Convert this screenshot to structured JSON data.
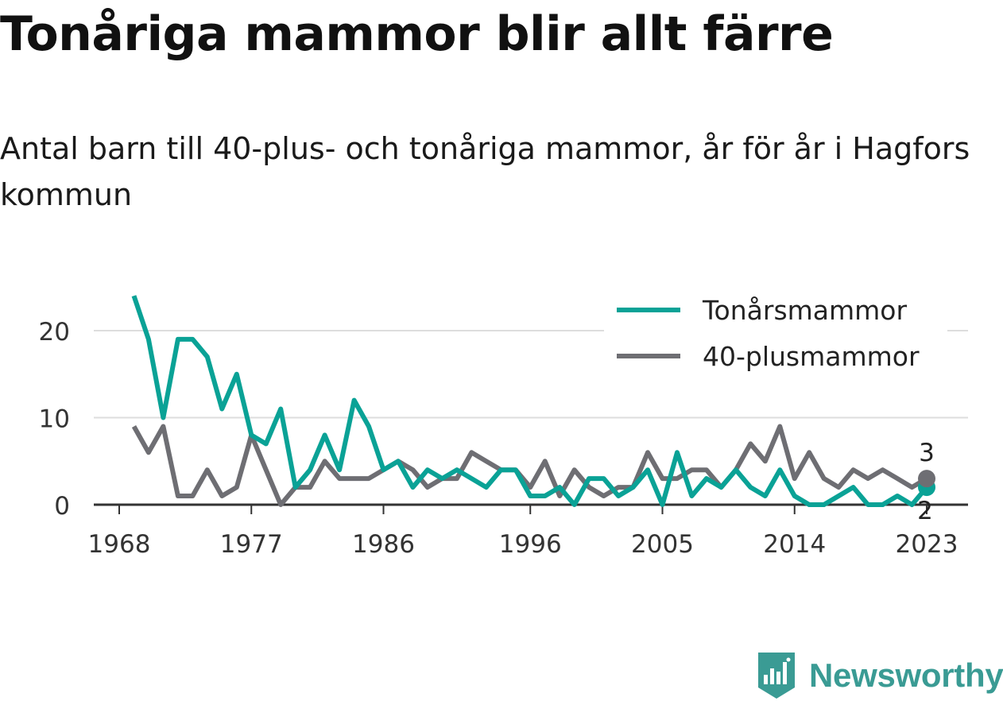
{
  "title": "Tonåriga mammor blir allt färre",
  "subtitle": "Antal barn till 40-plus- och tonåriga mammor, år för år i Hagfors kommun",
  "brand": {
    "name": "Newsworthy",
    "icon": "newsworthy-logo-icon"
  },
  "colors": {
    "teen": "#0aa296",
    "forty_plus": "#6e6e73",
    "grid": "#dddddd",
    "axis": "#333333"
  },
  "chart_data": {
    "type": "line",
    "x": [
      1969,
      1970,
      1971,
      1972,
      1973,
      1974,
      1975,
      1976,
      1977,
      1978,
      1979,
      1980,
      1981,
      1982,
      1983,
      1984,
      1985,
      1986,
      1987,
      1988,
      1989,
      1990,
      1991,
      1992,
      1993,
      1994,
      1995,
      1996,
      1997,
      1998,
      1999,
      2000,
      2001,
      2002,
      2003,
      2004,
      2005,
      2006,
      2007,
      2008,
      2009,
      2010,
      2011,
      2012,
      2013,
      2014,
      2015,
      2016,
      2017,
      2018,
      2019,
      2020,
      2021,
      2022,
      2023
    ],
    "series": [
      {
        "name": "Tonårsmammor",
        "color": "#0aa296",
        "values": [
          24,
          19,
          10,
          19,
          19,
          17,
          11,
          15,
          8,
          7,
          11,
          2,
          4,
          8,
          4,
          12,
          9,
          4,
          5,
          2,
          4,
          3,
          4,
          3,
          2,
          4,
          4,
          1,
          1,
          2,
          0,
          3,
          3,
          1,
          2,
          4,
          0,
          6,
          1,
          3,
          2,
          4,
          2,
          1,
          4,
          1,
          0,
          0,
          1,
          2,
          0,
          0,
          1,
          0,
          2
        ],
        "end_label": "2"
      },
      {
        "name": "40-plusmammor",
        "color": "#6e6e73",
        "values": [
          9,
          6,
          9,
          1,
          1,
          4,
          1,
          2,
          8,
          4,
          0,
          2,
          2,
          5,
          3,
          3,
          3,
          4,
          5,
          4,
          2,
          3,
          3,
          6,
          5,
          4,
          4,
          2,
          5,
          1,
          4,
          2,
          1,
          2,
          2,
          6,
          3,
          3,
          4,
          4,
          2,
          4,
          7,
          5,
          9,
          3,
          6,
          3,
          2,
          4,
          3,
          4,
          3,
          2,
          3
        ],
        "end_label": "3"
      }
    ],
    "x_ticks": [
      1968,
      1977,
      1986,
      1996,
      2005,
      2014,
      2023
    ],
    "x_tick_labels": [
      "1968",
      "1977",
      "1986",
      "1996",
      "2005",
      "2014",
      "2023"
    ],
    "y_ticks": [
      0,
      10,
      20
    ],
    "y_tick_labels": [
      "0",
      "10",
      "20"
    ],
    "xlim": [
      1968,
      2026
    ],
    "ylim": [
      0,
      25
    ],
    "title": "",
    "xlabel": "",
    "ylabel": "",
    "grid": true,
    "legend_position": "top-right"
  }
}
